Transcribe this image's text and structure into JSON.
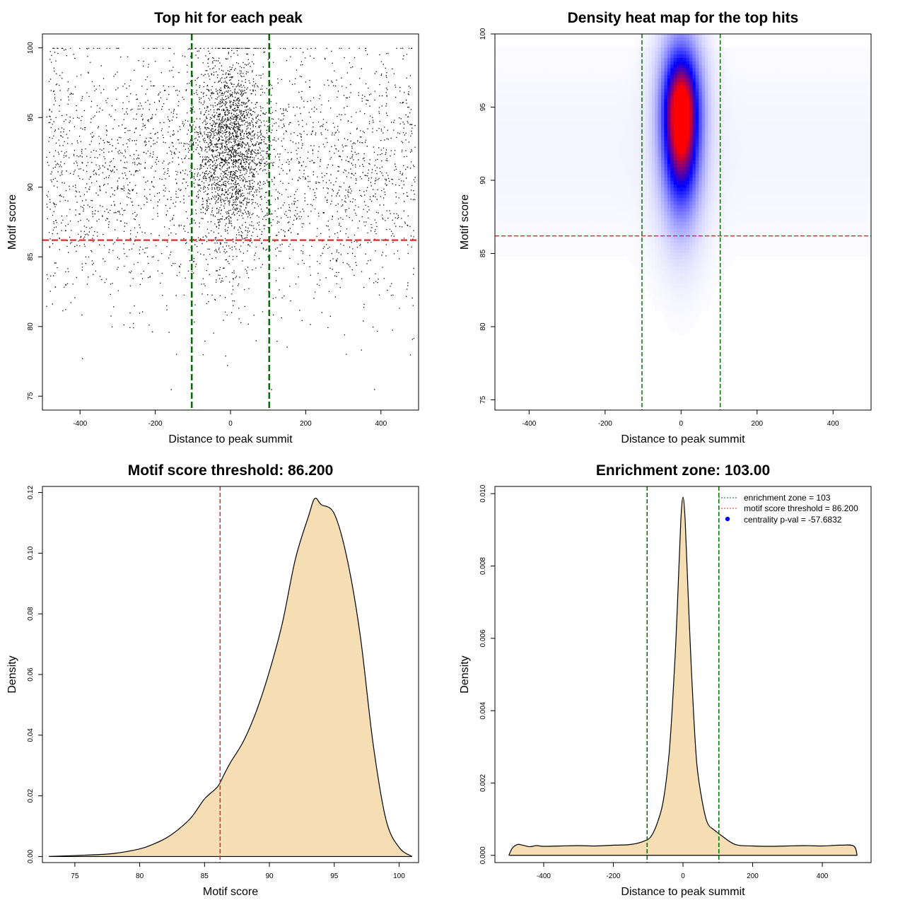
{
  "colors": {
    "threshold_red": "#e0282a",
    "zone_green": "#0a6e0a",
    "density_fill": "#f5deb3",
    "points": "#000000",
    "heat_low": "#ffffff",
    "heat_mid": "#0000ff",
    "heat_high": "#ff0000"
  },
  "chart_data": [
    {
      "id": "scatter",
      "type": "scatter",
      "title": "Top hit for each peak",
      "xlabel": "Distance to peak summit",
      "ylabel": "Motif score",
      "xlim": [
        -500,
        500
      ],
      "ylim": [
        74,
        101
      ],
      "xticks": [
        -400,
        -200,
        0,
        200,
        400
      ],
      "yticks": [
        75,
        80,
        85,
        90,
        95,
        100
      ],
      "threshold_y": 86.2,
      "zone_x": [
        -103,
        103
      ],
      "grid": false,
      "description_of_distribution": {
        "background_points": 5200,
        "central_points": 6000,
        "central_sd": 45,
        "x_range": [
          -490,
          490
        ],
        "score_mean": 93.5,
        "score_sd": 3.6
      }
    },
    {
      "id": "heatmap",
      "type": "heatmap",
      "title": "Density heat map for the top hits",
      "xlabel": "Distance to peak summit",
      "ylabel": "Motif score",
      "xlim": [
        -490,
        500
      ],
      "ylim": [
        74.3,
        100
      ],
      "xticks": [
        -400,
        -200,
        0,
        200,
        400
      ],
      "yticks": [
        75,
        80,
        85,
        90,
        95,
        100
      ],
      "threshold_y": 86.2,
      "zone_x": [
        -103,
        103
      ],
      "peak": {
        "x": 0,
        "y": 94.5
      },
      "color_scale": [
        "white",
        "blue",
        "red"
      ]
    },
    {
      "id": "score_density",
      "type": "area",
      "title": "Motif score threshold: 86.200",
      "xlabel": "Motif score",
      "ylabel": "Density",
      "xlim": [
        72.5,
        101.5
      ],
      "ylim": [
        -0.002,
        0.122
      ],
      "xticks": [
        75,
        80,
        85,
        90,
        95,
        100
      ],
      "yticks": [
        0.0,
        0.02,
        0.04,
        0.06,
        0.08,
        0.1,
        0.12
      ],
      "ytick_labels": [
        "0.00",
        "0.02",
        "0.04",
        "0.06",
        "0.08",
        "0.10",
        "0.12"
      ],
      "threshold_x": 86.2,
      "x": [
        73.0,
        76.0,
        78.0,
        80.0,
        81.0,
        82.0,
        83.0,
        84.0,
        85.0,
        86.0,
        86.5,
        87.0,
        88.0,
        89.0,
        90.0,
        91.0,
        92.0,
        93.0,
        93.5,
        94.0,
        95.0,
        96.0,
        97.0,
        98.0,
        99.0,
        100.0,
        101.0
      ],
      "y": [
        0.0,
        0.0005,
        0.001,
        0.0025,
        0.004,
        0.006,
        0.009,
        0.013,
        0.019,
        0.023,
        0.027,
        0.031,
        0.038,
        0.048,
        0.061,
        0.077,
        0.098,
        0.112,
        0.118,
        0.116,
        0.113,
        0.098,
        0.073,
        0.037,
        0.012,
        0.003,
        0.0
      ]
    },
    {
      "id": "distance_density",
      "type": "area",
      "title": "Enrichment zone: 103.00",
      "xlabel": "Distance to peak summit",
      "ylabel": "Density",
      "xlim": [
        -540,
        540
      ],
      "ylim": [
        -0.0002,
        0.0102
      ],
      "xticks": [
        -400,
        -200,
        0,
        200,
        400
      ],
      "yticks": [
        0.0,
        0.002,
        0.004,
        0.006,
        0.008,
        0.01
      ],
      "ytick_labels": [
        "0.000",
        "0.002",
        "0.004",
        "0.006",
        "0.008",
        "0.010"
      ],
      "zone_x": [
        -103,
        103
      ],
      "x": [
        -500,
        -490,
        -475,
        -460,
        -440,
        -420,
        -400,
        -350,
        -300,
        -250,
        -200,
        -150,
        -110,
        -90,
        -70,
        -55,
        -40,
        -30,
        -20,
        -12,
        -6,
        0,
        6,
        12,
        20,
        30,
        40,
        55,
        70,
        90,
        110,
        150,
        200,
        250,
        300,
        350,
        400,
        450,
        490,
        500
      ],
      "y": [
        0.0,
        0.0002,
        0.0003,
        0.00028,
        0.00024,
        0.00027,
        0.00025,
        0.00026,
        0.00027,
        0.00026,
        0.00028,
        0.0003,
        0.0004,
        0.00055,
        0.001,
        0.0016,
        0.0028,
        0.0042,
        0.006,
        0.0079,
        0.0093,
        0.0099,
        0.0093,
        0.0079,
        0.006,
        0.004,
        0.0025,
        0.0015,
        0.0009,
        0.0007,
        0.00055,
        0.0003,
        0.00026,
        0.00025,
        0.00026,
        0.00027,
        0.00026,
        0.00028,
        0.00026,
        0.0
      ]
    }
  ],
  "legend": {
    "items": [
      {
        "text": "enrichment zone = 103",
        "kind": "line",
        "color": "#0a6e0a"
      },
      {
        "text": "motif score threshold = 86.200",
        "kind": "line",
        "color": "#e0282a"
      },
      {
        "text": "centrality p-val = -57.6832",
        "kind": "dot",
        "color": "#0000ff"
      }
    ]
  }
}
